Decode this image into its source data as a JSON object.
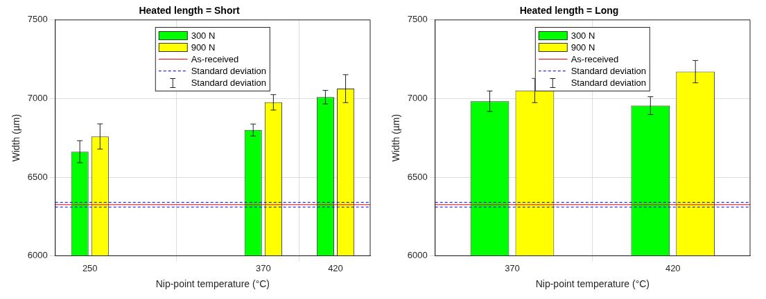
{
  "chart_data": [
    {
      "type": "bar",
      "title": "Heated length = Short",
      "xlabel": "Nip-point temperature (°C)",
      "ylabel": "Width (µm)",
      "x": [
        250,
        370,
        420
      ],
      "xlim": [
        226,
        444
      ],
      "xticks": [
        250,
        370,
        420
      ],
      "ylim": [
        6000,
        7500
      ],
      "yticks": [
        6000,
        6500,
        7000,
        7500
      ],
      "grid": true,
      "legend": "top",
      "series": [
        {
          "name": "300 N",
          "color": "#00ff00",
          "values": [
            6662,
            6800,
            7009
          ],
          "errors": [
            70,
            38,
            43
          ]
        },
        {
          "name": "900 N",
          "color": "#ffff00",
          "values": [
            6759,
            6976,
            7063
          ],
          "errors": [
            80,
            49,
            89
          ]
        }
      ],
      "ref_lines": [
        {
          "axis": "y",
          "value": 6325,
          "label": "As-received",
          "color": "#ff0000",
          "line_style": "solid"
        },
        {
          "axis": "y",
          "value": 6340,
          "label": "Standard deviation",
          "color": "#0000ff",
          "line_style": "dashed"
        },
        {
          "axis": "y",
          "value": 6310,
          "label": null,
          "color": "#0000ff",
          "line_style": "dashed"
        }
      ],
      "annotations": [
        "Standard deviation"
      ]
    },
    {
      "type": "bar",
      "title": "Heated length = Long",
      "xlabel": "Nip-point temperature (°C)",
      "ylabel": "Width (µm)",
      "x": [
        370,
        420
      ],
      "xlim": [
        346,
        444
      ],
      "xticks": [
        370,
        420
      ],
      "ylim": [
        6000,
        7500
      ],
      "yticks": [
        6000,
        6500,
        7000,
        7500
      ],
      "grid": true,
      "legend": "top",
      "series": [
        {
          "name": "300 N",
          "color": "#00ff00",
          "values": [
            6983,
            6955
          ],
          "errors": [
            65,
            57
          ]
        },
        {
          "name": "900 N",
          "color": "#ffff00",
          "values": [
            7051,
            7171
          ],
          "errors": [
            77,
            71
          ]
        }
      ],
      "ref_lines": [
        {
          "axis": "y",
          "value": 6325,
          "label": "As-received",
          "color": "#ff0000",
          "line_style": "solid"
        },
        {
          "axis": "y",
          "value": 6340,
          "label": "Standard deviation",
          "color": "#0000ff",
          "line_style": "dashed"
        },
        {
          "axis": "y",
          "value": 6310,
          "label": null,
          "color": "#0000ff",
          "line_style": "dashed"
        }
      ],
      "annotations": [
        "Standard deviation"
      ]
    }
  ]
}
